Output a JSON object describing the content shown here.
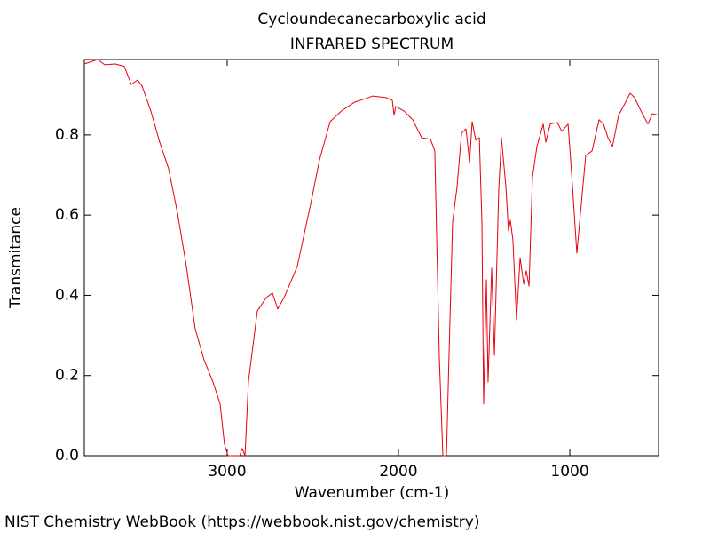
{
  "chart_data": {
    "type": "line",
    "title": "Cycloundecanecarboxylic acid",
    "subtitle": "INFRARED SPECTRUM",
    "x_label": "Wavenumber (cm-1)",
    "y_label": "Transmitance",
    "footer": "NIST Chemistry WebBook (https://webbook.nist.gov/chemistry)",
    "color": "#e8000b",
    "x": [
      3834,
      3756,
      3715,
      3653,
      3601,
      3560,
      3523,
      3497,
      3446,
      3394,
      3342,
      3290,
      3238,
      3187,
      3135,
      3083,
      3041,
      3016,
      2995,
      2927,
      2912,
      2896,
      2876,
      2824,
      2772,
      2736,
      2705,
      2668,
      2591,
      2513,
      2461,
      2399,
      2332,
      2254,
      2202,
      2150,
      2073,
      2036,
      2026,
      2016,
      1969,
      1917,
      1865,
      1813,
      1788,
      1762,
      1741,
      1720,
      1705,
      1684,
      1658,
      1632,
      1606,
      1585,
      1570,
      1549,
      1528,
      1513,
      1503,
      1487,
      1477,
      1456,
      1440,
      1415,
      1399,
      1373,
      1358,
      1347,
      1332,
      1311,
      1290,
      1269,
      1254,
      1238,
      1218,
      1192,
      1155,
      1140,
      1114,
      1073,
      1047,
      1010,
      984,
      959,
      933,
      907,
      870,
      829,
      803,
      777,
      751,
      715,
      674,
      648,
      622,
      585,
      544,
      518,
      482
    ],
    "values": [
      0.977,
      0.988,
      0.975,
      0.977,
      0.971,
      0.926,
      0.937,
      0.922,
      0.86,
      0.782,
      0.716,
      0.605,
      0.472,
      0.317,
      0.239,
      0.184,
      0.129,
      0.029,
      0,
      0,
      0.018,
      0,
      0.184,
      0.361,
      0.394,
      0.406,
      0.366,
      0.394,
      0.472,
      0.627,
      0.738,
      0.833,
      0.86,
      0.882,
      0.889,
      0.897,
      0.893,
      0.886,
      0.849,
      0.871,
      0.86,
      0.838,
      0.793,
      0.789,
      0.76,
      0.25,
      0,
      0,
      0.25,
      0.583,
      0.671,
      0.804,
      0.815,
      0.731,
      0.833,
      0.787,
      0.793,
      0.583,
      0.129,
      0.439,
      0.184,
      0.468,
      0.25,
      0.66,
      0.793,
      0.671,
      0.561,
      0.587,
      0.538,
      0.339,
      0.494,
      0.428,
      0.461,
      0.423,
      0.694,
      0.771,
      0.827,
      0.782,
      0.827,
      0.831,
      0.809,
      0.827,
      0.671,
      0.505,
      0.627,
      0.749,
      0.76,
      0.838,
      0.827,
      0.793,
      0.771,
      0.849,
      0.882,
      0.904,
      0.893,
      0.86,
      0.827,
      0.853,
      0.849
    ],
    "xlim": [
      3834,
      482
    ],
    "ylim": [
      0,
      0.988
    ],
    "xticks": [
      3000,
      2000,
      1000
    ],
    "yticks": [
      {
        "value": 0,
        "label": "0.0"
      },
      0.2,
      0.4,
      0.6,
      0.8
    ]
  }
}
